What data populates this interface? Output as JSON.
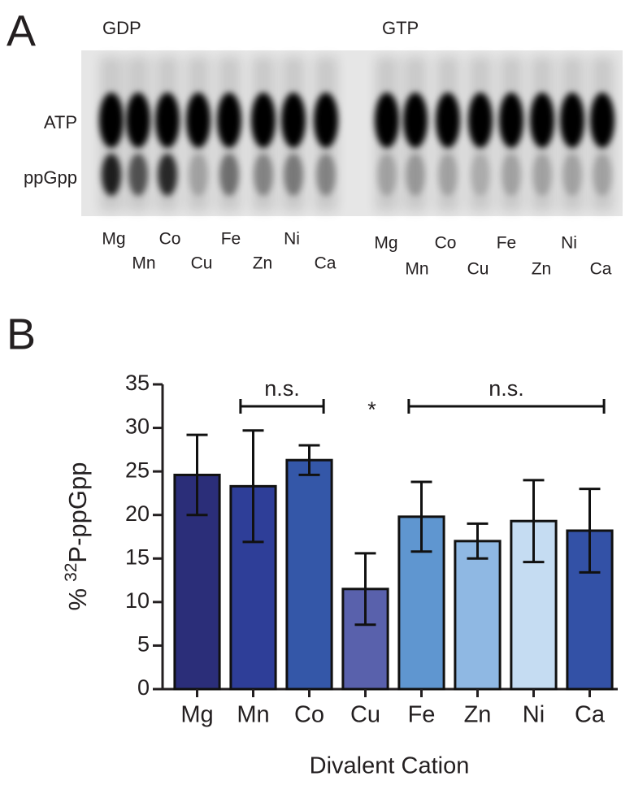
{
  "panel_a": {
    "label": "A",
    "nucleotides": [
      "GDP",
      "GTP"
    ],
    "rows": [
      "ATP",
      "ppGpp"
    ],
    "lanes": [
      "Mg",
      "Mn",
      "Co",
      "Cu",
      "Fe",
      "Zn",
      "Ni",
      "Ca"
    ]
  },
  "chart_data": {
    "type": "bar",
    "panel_label": "B",
    "xlabel": "Divalent Cation",
    "ylabel": {
      "prefix": "%",
      "superscript": "32",
      "text": "P-ppGpp"
    },
    "categories": [
      "Mg",
      "Mn",
      "Co",
      "Cu",
      "Fe",
      "Zn",
      "Ni",
      "Ca"
    ],
    "values": [
      24.6,
      23.3,
      26.3,
      11.5,
      19.8,
      17.0,
      19.3,
      18.2
    ],
    "errors": [
      4.6,
      6.4,
      1.7,
      4.1,
      4.0,
      2.0,
      4.7,
      4.8
    ],
    "colors": [
      "#2b2e79",
      "#2e3e98",
      "#3457a8",
      "#5961ac",
      "#5f96d0",
      "#8fb8e3",
      "#c5dcf2",
      "#3351a6"
    ],
    "ylim": [
      0,
      35
    ],
    "yticks": [
      0,
      5,
      10,
      15,
      20,
      25,
      30,
      35
    ],
    "annotations": [
      {
        "text": "n.s.",
        "from": "Mn",
        "to": "Co"
      },
      {
        "text": "*",
        "at": "Cu"
      },
      {
        "text": "n.s.",
        "from": "Fe",
        "to": "Ca"
      }
    ]
  }
}
